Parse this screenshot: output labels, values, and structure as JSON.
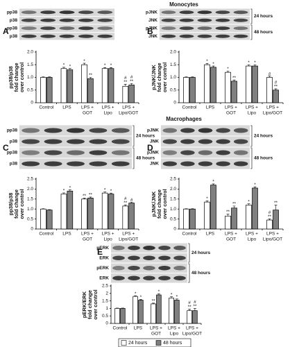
{
  "chart_data": [
    {
      "type": "bar",
      "panel": "A",
      "group": "Monocytes",
      "blot": {
        "rows": [
          "pp38",
          "p38",
          "pp38",
          "p38"
        ]
      },
      "ylabel": [
        "pp38/p38",
        "fold change",
        "over control"
      ],
      "categories": [
        [
          "Control"
        ],
        [
          "LPS"
        ],
        [
          "LPS +",
          "GOT"
        ],
        [
          "LPS +",
          "Lipo"
        ],
        [
          "LPS +",
          "Lipo/GOT"
        ]
      ],
      "ylim": [
        0,
        2
      ],
      "yticks": [
        0,
        0.5,
        {
          "value": 1,
          "label": "1.0"
        },
        1.5,
        {
          "value": 2,
          "label": "2.0"
        }
      ],
      "series": [
        {
          "color": "#ffffff",
          "values": [
            1.0,
            1.35,
            1.5,
            1.35,
            0.65
          ],
          "errors": [
            0.02,
            0.05,
            0.06,
            0.04,
            0.08
          ],
          "annotations": [
            null,
            [
              "*"
            ],
            [
              "*"
            ],
            [
              "*"
            ],
            [
              "#",
              "**"
            ]
          ]
        },
        {
          "color": "#808080",
          "values": [
            1.0,
            1.3,
            0.95,
            1.35,
            0.7
          ],
          "errors": [
            0.02,
            0.05,
            0.05,
            0.04,
            0.06
          ],
          "annotations": [
            null,
            [
              "*"
            ],
            [
              "**"
            ],
            [
              "*"
            ],
            [
              "#",
              "**"
            ]
          ]
        }
      ]
    },
    {
      "type": "bar",
      "panel": "B",
      "blot": {
        "rows": [
          "pJNK",
          "JNK",
          "pJNK",
          "JNK"
        ],
        "periods": [
          "24 hours",
          "48 hours"
        ]
      },
      "ylabel": [
        "pJNK/JNK",
        "fold change",
        "over control"
      ],
      "categories": [
        [
          "Control"
        ],
        [
          "LPS"
        ],
        [
          "LPS +",
          "GOT"
        ],
        [
          "LPS +",
          "Lipo"
        ],
        [
          "LPS +",
          "Lipo/GOT"
        ]
      ],
      "ylim": [
        0,
        2
      ],
      "yticks": [
        0,
        0.5,
        {
          "value": 1,
          "label": "1.0"
        },
        1.5,
        {
          "value": 2,
          "label": "2.0"
        }
      ],
      "series": [
        {
          "color": "#ffffff",
          "values": [
            1.0,
            1.5,
            1.2,
            1.45,
            1.0
          ],
          "errors": [
            0.02,
            0.05,
            0.05,
            0.05,
            0.05
          ],
          "annotations": [
            null,
            [
              "*"
            ],
            [
              "*"
            ],
            [
              "*"
            ],
            [
              "#"
            ]
          ]
        },
        {
          "color": "#808080",
          "values": [
            1.0,
            1.4,
            0.85,
            1.45,
            0.5
          ],
          "errors": [
            0.02,
            0.05,
            0.05,
            0.05,
            0.05
          ],
          "annotations": [
            null,
            [
              "*"
            ],
            [
              "**"
            ],
            [
              "*"
            ],
            [
              "#",
              "**"
            ]
          ]
        }
      ]
    },
    {
      "type": "bar",
      "panel": "C",
      "group": "Macrophages",
      "blot": {
        "rows": [
          "pp38",
          "p38",
          "pp38",
          "p38"
        ],
        "periods": [
          "24 hours",
          "48 hours"
        ]
      },
      "ylabel": [
        "pp38/p38",
        "fold change",
        "over control"
      ],
      "categories": [
        [
          "Control"
        ],
        [
          "LPS"
        ],
        [
          "LPS +",
          "GOT"
        ],
        [
          "LPS +",
          "Lipo"
        ],
        [
          "LPS +",
          "Lipo/GOT"
        ]
      ],
      "ylim": [
        0,
        2.5
      ],
      "yticks": [
        0,
        0.5,
        {
          "value": 1,
          "label": "1.0"
        },
        1.5,
        {
          "value": 2,
          "label": "2.0"
        },
        2.5
      ],
      "series": [
        {
          "color": "#ffffff",
          "values": [
            1.0,
            1.75,
            1.5,
            1.8,
            1.15
          ],
          "errors": [
            0.02,
            0.06,
            0.05,
            0.05,
            0.06
          ],
          "annotations": [
            null,
            [
              "*"
            ],
            [
              "**"
            ],
            [
              "*"
            ],
            [
              "#",
              "**"
            ]
          ]
        },
        {
          "color": "#808080",
          "values": [
            0.95,
            1.9,
            1.55,
            1.75,
            1.3
          ],
          "errors": [
            0.02,
            0.06,
            0.05,
            0.05,
            0.05
          ],
          "annotations": [
            null,
            [
              "*"
            ],
            [
              "**"
            ],
            [
              "*"
            ],
            [
              "#"
            ]
          ]
        }
      ]
    },
    {
      "type": "bar",
      "panel": "D",
      "blot": {
        "rows": [
          "pJNK",
          "JNK",
          "pJNK",
          "JNK"
        ],
        "periods": [
          "24 hours",
          "48 hours"
        ]
      },
      "ylabel": [
        "pJNK/JNK",
        "fold change",
        "over control"
      ],
      "categories": [
        [
          "Control"
        ],
        [
          "LPS"
        ],
        [
          "LPS +",
          "GOT"
        ],
        [
          "LPS +",
          "Lipo"
        ],
        [
          "LPS +",
          "Lipo/GOT"
        ]
      ],
      "ylim": [
        0,
        2.5
      ],
      "yticks": [
        0,
        0.5,
        {
          "value": 1,
          "label": "1.0"
        },
        1.5,
        {
          "value": 2,
          "label": "2.0"
        },
        2.5
      ],
      "series": [
        {
          "color": "#ffffff",
          "values": [
            1.0,
            1.35,
            0.65,
            1.2,
            0.45
          ],
          "errors": [
            0.02,
            0.06,
            0.1,
            0.06,
            0.06
          ],
          "annotations": [
            null,
            [
              "*"
            ],
            [
              "**"
            ],
            [
              "*"
            ],
            [
              "#",
              "**"
            ]
          ]
        },
        {
          "color": "#808080",
          "values": [
            1.0,
            2.2,
            1.05,
            2.05,
            0.95
          ],
          "errors": [
            0.02,
            0.06,
            0.1,
            0.06,
            0.25
          ],
          "annotations": [
            null,
            [
              "*"
            ],
            [
              "**"
            ],
            [
              "*"
            ],
            [
              "**"
            ]
          ]
        }
      ]
    },
    {
      "type": "bar",
      "panel": "E",
      "blot": {
        "rows": [
          "pERK",
          "ERK",
          "pERK",
          "ERK"
        ],
        "periods": [
          "24 hours",
          "48 hours"
        ]
      },
      "ylabel": [
        "pERK/ERK",
        "fold change",
        "over control"
      ],
      "categories": [
        [
          "Control"
        ],
        [
          "LPS"
        ],
        [
          "LPS +",
          "GOT"
        ],
        [
          "LPS +",
          "Lipo"
        ],
        [
          "LPS +",
          "Lipo/GOT"
        ]
      ],
      "ylim": [
        0,
        2.5
      ],
      "yticks": [
        0,
        0.5,
        1,
        1.5,
        2,
        2.5
      ],
      "series": [
        {
          "name": "24 hours",
          "color": "#ffffff",
          "values": [
            1.0,
            1.8,
            1.3,
            1.7,
            0.85
          ],
          "errors": [
            0.02,
            0.05,
            0.05,
            0.08,
            0.1
          ],
          "annotations": [
            null,
            [
              "*"
            ],
            [
              "**"
            ],
            [
              "*"
            ],
            [
              "#",
              "**"
            ]
          ]
        },
        {
          "name": "48 hours",
          "color": "#808080",
          "values": [
            1.0,
            1.55,
            1.9,
            1.55,
            0.85
          ],
          "errors": [
            0.02,
            0.05,
            0.08,
            0.08,
            0.15
          ],
          "annotations": [
            null,
            [
              "*"
            ],
            [
              "*"
            ],
            [
              "*"
            ],
            [
              "#",
              "**"
            ]
          ]
        }
      ]
    }
  ]
}
